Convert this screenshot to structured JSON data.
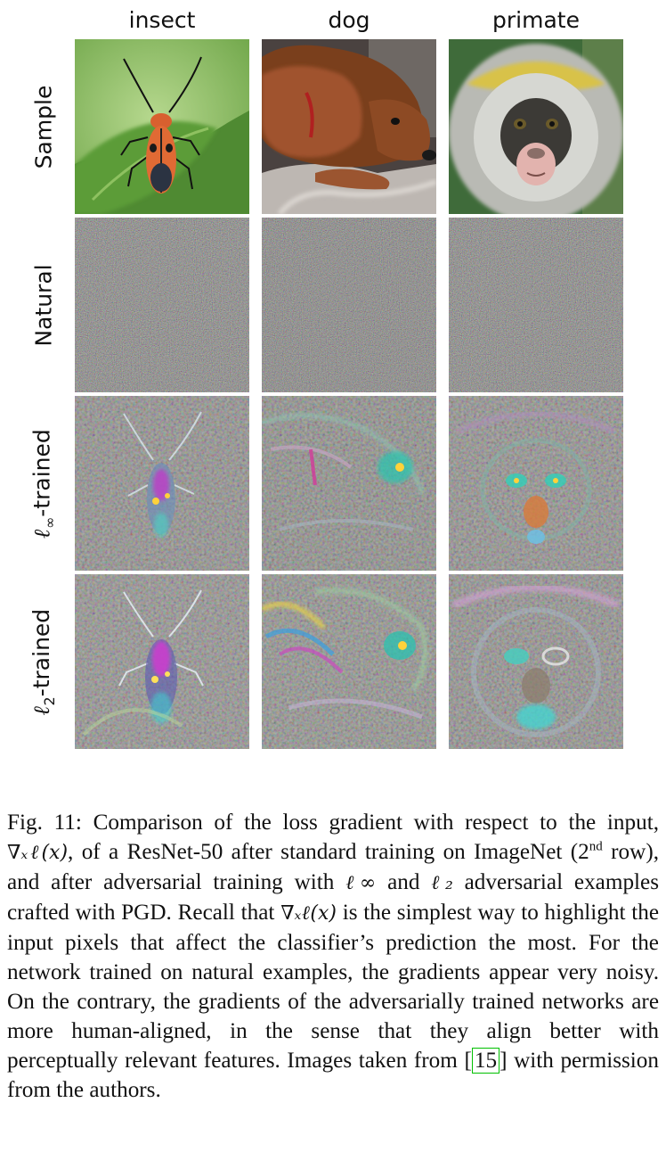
{
  "columns": [
    "insect",
    "dog",
    "primate"
  ],
  "rows": [
    {
      "label": "Sample"
    },
    {
      "label": "Natural"
    },
    {
      "label_symbol": "ℓ",
      "label_sub": "∞",
      "label_rest": "-trained"
    },
    {
      "label_symbol": "ℓ",
      "label_sub": "2",
      "label_rest": "-trained"
    }
  ],
  "caption": {
    "fig_num": "Fig. 11:",
    "t1": "Comparison of the loss gradient with respect to the input,",
    "m1": "∇ₓℓ(x)",
    "t2": ", of a ResNet-50 after standard training on ImageNet (2",
    "sup": "nd",
    "t3": "row), and after adversarial training with",
    "m2": "ℓ∞",
    "t4": "and",
    "m3": "ℓ₂",
    "t5": "adversarial examples crafted with PGD. Recall that",
    "m4": "∇ₓℓ(x)",
    "t6": "is the simplest way to highlight the input pixels that affect the classifier’s prediction the most. For the network trained on natural examples, the gradients appear very noisy. On the contrary, the gradients of the adversarially trained networks are more human-aligned, in the sense that they align better with perceptually relevant features. Images taken from",
    "cite": "15",
    "t7": "with permission from the authors."
  }
}
